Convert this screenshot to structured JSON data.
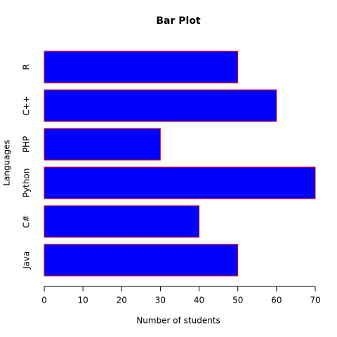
{
  "chart_data": {
    "type": "bar",
    "horizontal": true,
    "title": "Bar Plot",
    "x_label": "Number of students",
    "y_label": "Languages",
    "categories": [
      "Java",
      "C#",
      "Python",
      "PHP",
      "C++",
      "R"
    ],
    "values": [
      50,
      40,
      70,
      30,
      60,
      50
    ],
    "color": "blue",
    "border_color": "red",
    "xlim": [
      0,
      70
    ],
    "xticks": [
      0,
      10,
      20,
      30,
      40,
      50,
      60,
      70
    ]
  }
}
